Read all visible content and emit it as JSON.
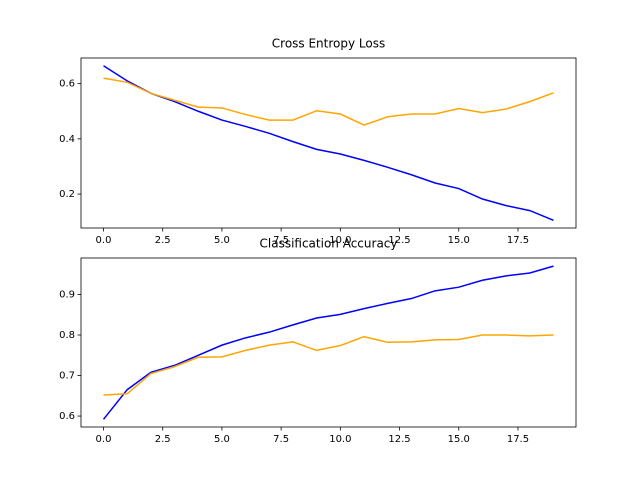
{
  "chart_data": [
    {
      "type": "line",
      "title": "Cross Entropy Loss",
      "x": [
        0,
        1,
        2,
        3,
        4,
        5,
        6,
        7,
        8,
        9,
        10,
        11,
        12,
        13,
        14,
        15,
        16,
        17,
        18,
        19
      ],
      "series": [
        {
          "color": "#0000ff",
          "values": [
            0.665,
            0.61,
            0.565,
            0.535,
            0.5,
            0.468,
            0.445,
            0.42,
            0.39,
            0.362,
            0.345,
            0.322,
            0.297,
            0.27,
            0.24,
            0.22,
            0.182,
            0.158,
            0.14,
            0.105
          ]
        },
        {
          "color": "#ffa500",
          "values": [
            0.62,
            0.605,
            0.565,
            0.54,
            0.515,
            0.512,
            0.488,
            0.468,
            0.468,
            0.502,
            0.49,
            0.45,
            0.48,
            0.49,
            0.49,
            0.51,
            0.495,
            0.508,
            0.535,
            0.567
          ]
        }
      ],
      "xlim": [
        -0.95,
        19.95
      ],
      "xticks": [
        {
          "value": 0,
          "label": "0.0"
        },
        2.5,
        {
          "value": 5,
          "label": "5.0"
        },
        7.5,
        {
          "value": 10,
          "label": "10.0"
        },
        12.5,
        {
          "value": 15,
          "label": "15.0"
        },
        17.5
      ],
      "ylim": [
        0.077,
        0.693
      ],
      "yticks": [
        0.2,
        0.4,
        0.6
      ]
    },
    {
      "type": "line",
      "title": "Classification Accuracy",
      "x": [
        0,
        1,
        2,
        3,
        4,
        5,
        6,
        7,
        8,
        9,
        10,
        11,
        12,
        13,
        14,
        15,
        16,
        17,
        18,
        19
      ],
      "series": [
        {
          "color": "#0000ff",
          "values": [
            0.592,
            0.665,
            0.708,
            0.725,
            0.75,
            0.775,
            0.793,
            0.807,
            0.825,
            0.842,
            0.851,
            0.865,
            0.878,
            0.89,
            0.909,
            0.918,
            0.935,
            0.946,
            0.953,
            0.97
          ]
        },
        {
          "color": "#ffa500",
          "values": [
            0.652,
            0.655,
            0.705,
            0.722,
            0.745,
            0.746,
            0.762,
            0.775,
            0.783,
            0.762,
            0.774,
            0.796,
            0.782,
            0.783,
            0.788,
            0.789,
            0.8,
            0.8,
            0.798,
            0.8
          ]
        }
      ],
      "xlim": [
        -0.95,
        19.95
      ],
      "xticks": [
        {
          "value": 0,
          "label": "0.0"
        },
        2.5,
        {
          "value": 5,
          "label": "5.0"
        },
        7.5,
        {
          "value": 10,
          "label": "10.0"
        },
        12.5,
        {
          "value": 15,
          "label": "15.0"
        },
        17.5
      ],
      "ylim": [
        0.573,
        0.99
      ],
      "yticks": [
        0.6,
        0.7,
        0.8,
        0.9
      ]
    }
  ]
}
